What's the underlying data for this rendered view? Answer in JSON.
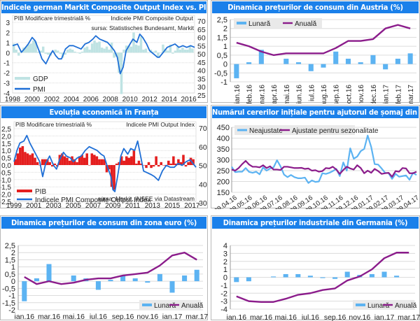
{
  "colors": {
    "title_bar": "#1a80ea",
    "bar_light_blue": "#5cb3f2",
    "line_purple": "#8b1c8b",
    "line_blue_pmi": "#1f6fd6",
    "gdp_teal": "#bfe3e3",
    "pib_red": "#e41e1e",
    "grid": "#dcdcdc"
  },
  "chart_data": [
    {
      "id": "germany-pmi-gdp",
      "type": "line",
      "title": "Indicele german Markit Composite Output Index vs. PIB",
      "left_axis_label": "PIB Modificare trimestrială %",
      "right_axis_label": "Indicele PMI Composite Output",
      "source": "sursa: Statistisches Bundesamt, Markit",
      "ylim_left": [
        -4,
        3
      ],
      "yticks_left": [
        "3",
        "2",
        "1",
        "0",
        "-1",
        "-2",
        "-3",
        "-4"
      ],
      "ylim_right": [
        25,
        70
      ],
      "yticks_right": [
        "70",
        "65",
        "60",
        "55",
        "50",
        "45",
        "40",
        "35",
        "30",
        "25"
      ],
      "xticks": [
        "1998",
        "2000",
        "2002",
        "2004",
        "2006",
        "2008",
        "2010",
        "2012",
        "2014",
        "2016"
      ],
      "xlim": [
        1998,
        2016.6
      ],
      "legend": [
        "GDP",
        "PMI"
      ],
      "series": [
        {
          "name": "GDP",
          "kind": "bar",
          "axis": "left",
          "x": [
            1998,
            1998.25,
            1998.5,
            1998.75,
            1999,
            1999.25,
            1999.5,
            1999.75,
            2000,
            2000.25,
            2000.5,
            2000.75,
            2001,
            2001.25,
            2001.5,
            2001.75,
            2002,
            2002.25,
            2002.5,
            2002.75,
            2003,
            2003.25,
            2003.5,
            2003.75,
            2004,
            2004.25,
            2004.5,
            2004.75,
            2005,
            2005.25,
            2005.5,
            2005.75,
            2006,
            2006.25,
            2006.5,
            2006.75,
            2007,
            2007.25,
            2007.5,
            2007.75,
            2008,
            2008.25,
            2008.5,
            2008.75,
            2009,
            2009.25,
            2009.5,
            2009.75,
            2010,
            2010.25,
            2010.5,
            2010.75,
            2011,
            2011.25,
            2011.5,
            2011.75,
            2012,
            2012.25,
            2012.5,
            2012.75,
            2013,
            2013.25,
            2013.5,
            2013.75,
            2014,
            2014.25,
            2014.5,
            2014.75,
            2015,
            2015.25,
            2015.5,
            2015.75,
            2016,
            2016.25
          ],
          "values": [
            0.9,
            0.3,
            -0.3,
            0.2,
            0.5,
            0.6,
            0.8,
            0.9,
            1.2,
            1.1,
            0.1,
            0.2,
            0.6,
            -0.1,
            -0.2,
            -0.3,
            0.0,
            0.3,
            0.2,
            -0.1,
            -0.5,
            -0.2,
            0.3,
            0.4,
            0.3,
            0.1,
            0.0,
            -0.1,
            0.1,
            0.5,
            0.6,
            0.3,
            0.9,
            1.2,
            1.0,
            1.1,
            0.5,
            0.4,
            0.6,
            0.3,
            1.0,
            -0.5,
            -0.4,
            -2.0,
            -4.1,
            0.3,
            0.7,
            0.7,
            0.6,
            2.0,
            0.8,
            0.7,
            1.6,
            0.3,
            0.4,
            0.0,
            0.3,
            0.1,
            0.2,
            -0.4,
            0.0,
            0.8,
            0.4,
            0.2,
            0.8,
            -0.1,
            0.2,
            0.6,
            0.3,
            0.5,
            0.3,
            0.3,
            0.7,
            0.4
          ]
        },
        {
          "name": "PMI",
          "kind": "line",
          "axis": "right",
          "x": [
            1998,
            1998.5,
            1998.9,
            1999.2,
            1999.6,
            2000,
            2000.3,
            2000.7,
            2001,
            2001.4,
            2001.8,
            2002.1,
            2002.4,
            2002.7,
            2003,
            2003.4,
            2003.8,
            2004.2,
            2004.6,
            2005,
            2005.4,
            2005.8,
            2006.2,
            2006.5,
            2006.9,
            2007.3,
            2007.7,
            2008,
            2008.4,
            2008.7,
            2009,
            2009.3,
            2009.6,
            2010,
            2010.3,
            2010.7,
            2011,
            2011.3,
            2011.7,
            2012,
            2012.4,
            2012.8,
            2013,
            2013.4,
            2013.8,
            2014.2,
            2014.6,
            2015,
            2015.4,
            2015.8,
            2016.2,
            2016.6
          ],
          "values": [
            55,
            56,
            51,
            53,
            56,
            60,
            58,
            52,
            47,
            44,
            49,
            52,
            49,
            47,
            47,
            53,
            55,
            55,
            54,
            53,
            56,
            57,
            59,
            61,
            59,
            58,
            57,
            55,
            52,
            48,
            38,
            42,
            52,
            56,
            59,
            57,
            62,
            60,
            56,
            52,
            50,
            48,
            48,
            51,
            54,
            55,
            56,
            54,
            55,
            54,
            55,
            54
          ]
        }
      ]
    },
    {
      "id": "austria-cpi",
      "type": "bar",
      "title": "Dinamica prețurilor de consum din Austria (%)",
      "categories": [
        "ian.16",
        "feb.16",
        "mar.16",
        "apr.16",
        "mai.16",
        "iun.16",
        "iul.16",
        "aug.16",
        "sep.16",
        "oct.16",
        "nov.16",
        "dec.16",
        "ian.17",
        "feb.17",
        "mar.17"
      ],
      "ylim": [
        -1,
        2.5
      ],
      "yticks": [
        "2,5",
        "2",
        "1,5",
        "1",
        "0,5",
        "0",
        "-0,5",
        "-1"
      ],
      "legend": [
        "Lunară",
        "Anuală"
      ],
      "legend_position": "top-left",
      "series": [
        {
          "name": "Lunară",
          "kind": "bar",
          "values": [
            -0.8,
            0.1,
            0.8,
            0.0,
            0.3,
            0.1,
            -0.4,
            -0.2,
            0.7,
            0.3,
            0.1,
            0.5,
            -0.3,
            0.3,
            0.6
          ]
        },
        {
          "name": "Anuală",
          "kind": "line",
          "values": [
            1.2,
            1.0,
            0.7,
            0.5,
            0.6,
            0.6,
            0.6,
            0.6,
            0.9,
            1.3,
            1.3,
            1.4,
            2.0,
            2.2,
            2.0
          ]
        }
      ]
    },
    {
      "id": "france-economy",
      "type": "line",
      "title": "Evoluția economică în Franța",
      "left_axis_label": "PIB Modificare trimestrială %",
      "right_axis_label": "Indicele PMI Output Index",
      "source": "sursa: Markit, INSEE via Datastream",
      "ylim_left": [
        -2.5,
        2.5
      ],
      "yticks_left": [
        "2,5",
        "2,0",
        "1,5",
        "1,0",
        "0,5",
        "0,0",
        "-0,5",
        "-1,0",
        "-1,5",
        "-2,0",
        "-2,5"
      ],
      "ylim_right": [
        30,
        70
      ],
      "yticks_right": [
        "70",
        "60",
        "50",
        "40",
        "30"
      ],
      "xticks": [
        "1999",
        "2001",
        "2003",
        "2005",
        "2007",
        "2009",
        "2011",
        "2013",
        "2015",
        "2017"
      ],
      "xlim": [
        1999,
        2017.4
      ],
      "legend": [
        "PIB",
        "Indicele PMI Composite Output Index"
      ],
      "series": [
        {
          "name": "PIB",
          "kind": "bar",
          "axis": "left",
          "x": [
            1999,
            1999.25,
            1999.5,
            1999.75,
            2000,
            2000.25,
            2000.5,
            2000.75,
            2001,
            2001.25,
            2001.5,
            2001.75,
            2002,
            2002.25,
            2002.5,
            2002.75,
            2003,
            2003.25,
            2003.5,
            2003.75,
            2004,
            2004.25,
            2004.5,
            2004.75,
            2005,
            2005.25,
            2005.5,
            2005.75,
            2006,
            2006.25,
            2006.5,
            2006.75,
            2007,
            2007.25,
            2007.5,
            2007.75,
            2008,
            2008.25,
            2008.5,
            2008.75,
            2009,
            2009.25,
            2009.5,
            2009.75,
            2010,
            2010.25,
            2010.5,
            2010.75,
            2011,
            2011.25,
            2011.5,
            2011.75,
            2012,
            2012.25,
            2012.5,
            2012.75,
            2013,
            2013.25,
            2013.5,
            2013.75,
            2014,
            2014.25,
            2014.5,
            2014.75,
            2015,
            2015.25,
            2015.5,
            2015.75,
            2016,
            2016.25,
            2016.5,
            2016.75,
            2017
          ],
          "values": [
            0.4,
            0.8,
            1.2,
            1.3,
            0.9,
            0.8,
            0.7,
            0.8,
            0.5,
            0.2,
            0.0,
            0.4,
            0.4,
            0.4,
            0.2,
            -0.1,
            0.1,
            -0.1,
            0.7,
            0.8,
            0.6,
            0.5,
            0.3,
            0.6,
            0.4,
            0.2,
            0.6,
            0.7,
            0.5,
            0.8,
            0.0,
            0.8,
            0.7,
            0.6,
            0.4,
            0.4,
            0.4,
            -0.5,
            -0.3,
            -1.5,
            -1.7,
            0.1,
            0.2,
            0.6,
            0.3,
            0.6,
            0.5,
            0.6,
            1.0,
            0.1,
            0.3,
            0.1,
            0.0,
            -0.2,
            0.2,
            -0.2,
            -0.1,
            0.6,
            -0.1,
            0.2,
            0.0,
            -0.1,
            0.3,
            0.1,
            0.6,
            0.1,
            0.4,
            0.2,
            0.7,
            -0.1,
            0.2,
            0.5,
            0.4
          ]
        },
        {
          "name": "Indicele PMI Composite Output Index",
          "kind": "line",
          "axis": "right",
          "x": [
            1999,
            1999.3,
            1999.6,
            2000,
            2000.3,
            2000.6,
            2001,
            2001.3,
            2001.6,
            2001.9,
            2002.2,
            2002.6,
            2003,
            2003.3,
            2003.6,
            2004,
            2004.3,
            2004.7,
            2005,
            2005.4,
            2005.8,
            2006.2,
            2006.6,
            2007,
            2007.4,
            2007.8,
            2008.1,
            2008.4,
            2008.8,
            2009,
            2009.2,
            2009.5,
            2009.8,
            2010.1,
            2010.5,
            2010.8,
            2011.2,
            2011.5,
            2011.8,
            2012.1,
            2012.5,
            2012.9,
            2013.2,
            2013.6,
            2014,
            2014.4,
            2014.8,
            2015.2,
            2015.6,
            2016,
            2016.4,
            2016.8,
            2017.1,
            2017.4
          ],
          "values": [
            52,
            58,
            62,
            63,
            66,
            62,
            58,
            55,
            52,
            44,
            51,
            55,
            50,
            48,
            53,
            57,
            55,
            54,
            52,
            54,
            55,
            58,
            60,
            59,
            58,
            56,
            55,
            50,
            44,
            37,
            36,
            45,
            55,
            59,
            56,
            59,
            58,
            63,
            55,
            47,
            46,
            45,
            44,
            42,
            47,
            50,
            49,
            49,
            51,
            50,
            52,
            53,
            51,
            49
          ]
        }
      ]
    },
    {
      "id": "us-jobless-claims",
      "type": "line",
      "title": "Numărul cererilor inițiale pentru ajutorul de șomaj din SUA (mii)",
      "ylim": [
        150,
        450
      ],
      "yticks": [
        "450",
        "400",
        "350",
        "300",
        "250",
        "200",
        "150"
      ],
      "xticks": [
        "09.04.16",
        "09.05.16",
        "09.06.16",
        "09.07.16",
        "09.08.16",
        "09.09.16",
        "09.10.16",
        "09.11.16",
        "09.12.16",
        "09.01.17",
        "09.02.17",
        "09.03.17",
        "09.04.17"
      ],
      "legend": [
        "Neajustate",
        "Ajustate pentru sezonalitate"
      ],
      "legend_position": "top-left",
      "series": [
        {
          "name": "Neajustate",
          "values": [
            268,
            243,
            245,
            245,
            262,
            244,
            240,
            245,
            233,
            265,
            250,
            260,
            265,
            298,
            270,
            232,
            220,
            230,
            220,
            215,
            215,
            218,
            193,
            205,
            198,
            200,
            238,
            235,
            240,
            248,
            258,
            225,
            288,
            250,
            353,
            305,
            315,
            340,
            350,
            412,
            360,
            280,
            278,
            260,
            240,
            238,
            212,
            235,
            222,
            225,
            228,
            208,
            240,
            230
          ]
        },
        {
          "name": "Ajustate pentru sezonalitate",
          "values": [
            255,
            250,
            262,
            280,
            295,
            278,
            268,
            268,
            265,
            275,
            262,
            270,
            255,
            255,
            253,
            268,
            268,
            265,
            262,
            262,
            263,
            258,
            260,
            250,
            252,
            245,
            248,
            262,
            260,
            268,
            255,
            235,
            253,
            268,
            260,
            255,
            275,
            262,
            238,
            250,
            240,
            258,
            248,
            235,
            238,
            240,
            222,
            248,
            245,
            262,
            260,
            238,
            238,
            245
          ]
        }
      ]
    },
    {
      "id": "eurozone-cpi",
      "type": "bar",
      "title": "Dinamica prețurilor de consum din zona euro (%)",
      "categories": [
        "ian.16",
        "feb.16",
        "mar.16",
        "apr.16",
        "mai.16",
        "iun.16",
        "iul.16",
        "aug.16",
        "sep.16",
        "oct.16",
        "nov.16",
        "dec.16",
        "ian.17",
        "feb.17",
        "mar.17"
      ],
      "xtick_labels": [
        "ian.16",
        "mar.16",
        "mai.16",
        "iul.16",
        "sep.16",
        "nov.16",
        "ian.17",
        "mar.17"
      ],
      "ylim": [
        -2,
        2.5
      ],
      "yticks": [
        "2,5",
        "2",
        "1,5",
        "1",
        "0,5",
        "0",
        "-0,5",
        "-1",
        "-1,5",
        "-2"
      ],
      "legend": [
        "Lunară",
        "Anuală"
      ],
      "legend_position": "bottom-right",
      "series": [
        {
          "name": "Lunară",
          "kind": "bar",
          "values": [
            -1.4,
            0.2,
            1.2,
            0.0,
            0.4,
            0.2,
            -0.6,
            0.1,
            0.4,
            0.2,
            -0.1,
            0.5,
            -0.8,
            0.4,
            0.8
          ]
        },
        {
          "name": "Anuală",
          "kind": "line",
          "values": [
            0.3,
            -0.2,
            0.0,
            -0.2,
            -0.1,
            0.1,
            0.2,
            0.2,
            0.4,
            0.5,
            0.6,
            1.1,
            1.8,
            2.0,
            1.5
          ]
        }
      ]
    },
    {
      "id": "germany-ppi",
      "type": "bar",
      "title": "Dinamica prețurilor industriale din Germania (%)",
      "categories": [
        "ian.16",
        "feb.16",
        "mar.16",
        "apr.16",
        "mai.16",
        "iun.16",
        "iul.16",
        "aug.16",
        "sep.16",
        "oct.16",
        "nov.16",
        "dec.16",
        "ian.17",
        "feb.17",
        "mar.17"
      ],
      "xtick_labels": [
        "ian.16",
        "mar.16",
        "mai.16",
        "iul.16",
        "sep.16",
        "nov.16",
        "ian.17",
        "mar.17"
      ],
      "ylim": [
        -4,
        4
      ],
      "yticks": [
        "4",
        "3",
        "2",
        "1",
        "0",
        "-1",
        "-2",
        "-3",
        "-4"
      ],
      "legend": [
        "Lunară",
        "Anuală"
      ],
      "legend_position": "bottom-right",
      "series": [
        {
          "name": "Lunară",
          "kind": "bar",
          "values": [
            -0.6,
            -0.5,
            0.0,
            0.1,
            0.4,
            0.4,
            0.2,
            -0.1,
            -0.2,
            0.7,
            0.3,
            0.4,
            0.7,
            0.2,
            0.0
          ]
        },
        {
          "name": "Anuală",
          "kind": "line",
          "values": [
            -2.4,
            -3.0,
            -3.1,
            -3.1,
            -2.7,
            -2.2,
            -2.0,
            -1.6,
            -1.4,
            -0.4,
            0.1,
            1.0,
            2.4,
            3.1,
            3.1
          ]
        }
      ]
    }
  ]
}
